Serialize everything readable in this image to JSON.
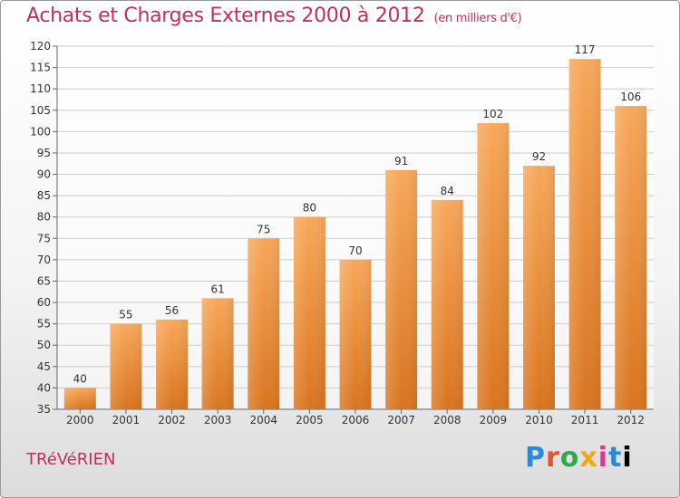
{
  "header": {
    "title": "Achats et Charges Externes 2000 à 2012",
    "subtitle": "(en milliers d'€)"
  },
  "footer": {
    "commune": "TRéVéRIEN",
    "logo_letters": [
      "P",
      "r",
      "o",
      "x",
      "i",
      "t",
      "i"
    ]
  },
  "colors": {
    "bar_top": "#f7a85a",
    "bar_bottom": "#d9751f",
    "title": "#c0305a",
    "grid": "#cccccc"
  },
  "chart_data": {
    "type": "bar",
    "title": "Achats et Charges Externes 2000 à 2012",
    "subtitle": "(en milliers d'€)",
    "categories": [
      "2000",
      "2001",
      "2002",
      "2003",
      "2004",
      "2005",
      "2006",
      "2007",
      "2008",
      "2009",
      "2010",
      "2011",
      "2012"
    ],
    "values": [
      40,
      55,
      56,
      61,
      75,
      80,
      70,
      91,
      84,
      102,
      92,
      117,
      106
    ],
    "ylim": [
      35,
      120
    ],
    "yticks": [
      35,
      40,
      45,
      50,
      55,
      60,
      65,
      70,
      75,
      80,
      85,
      90,
      95,
      100,
      105,
      110,
      115,
      120
    ],
    "grid": true,
    "xlabel": "",
    "ylabel": ""
  }
}
